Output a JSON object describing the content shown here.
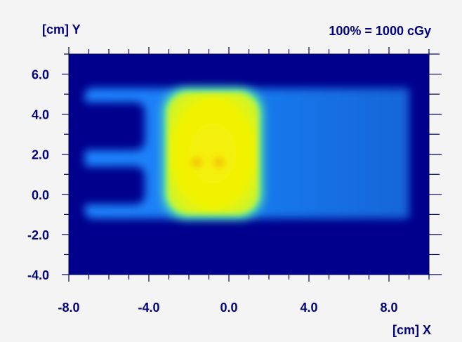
{
  "chart_data": {
    "type": "heatmap",
    "title": "100% = 1000 cGy",
    "xlabel": "[cm] X",
    "ylabel": "[cm] Y",
    "xlim": [
      -8.0,
      10.0
    ],
    "ylim": [
      -4.0,
      7.0
    ],
    "x_tick_labels": [
      {
        "value": -8.0,
        "label": "-8.0"
      },
      {
        "value": -4.0,
        "label": "-4.0"
      },
      {
        "value": 0.0,
        "label": "0.0"
      },
      {
        "value": 4.0,
        "label": "4.0"
      },
      {
        "value": 8.0,
        "label": "8.0"
      }
    ],
    "y_tick_labels": [
      {
        "value": 6.0,
        "label": "6.0"
      },
      {
        "value": 4.0,
        "label": "4.0"
      },
      {
        "value": 2.0,
        "label": "2.0"
      },
      {
        "value": 0.0,
        "label": "0.0"
      },
      {
        "value": -2.0,
        "label": "-2.0"
      },
      {
        "value": -4.0,
        "label": "-4.0"
      }
    ],
    "minor_tick_step": 1.0,
    "grid": false,
    "colors": {
      "background_dose": "#00008c",
      "low_dose_field": "#1a7cf0",
      "high_dose_field": "#f4f200",
      "hotspot": "#f0b000",
      "axis": "#000080"
    },
    "dose_regions": [
      {
        "name": "low",
        "x": [
          -7.2,
          9.0
        ],
        "y": [
          -1.2,
          5.3
        ],
        "relative_dose": 0.35
      },
      {
        "name": "high",
        "x": [
          -3.3,
          1.7
        ],
        "y": [
          -1.2,
          5.3
        ],
        "relative_dose": 1.0
      },
      {
        "name": "hotspot",
        "x": -1.6,
        "y": 1.6,
        "relative_dose": 1.05
      },
      {
        "name": "hotspot",
        "x": -0.5,
        "y": 1.6,
        "relative_dose": 1.04
      }
    ]
  }
}
